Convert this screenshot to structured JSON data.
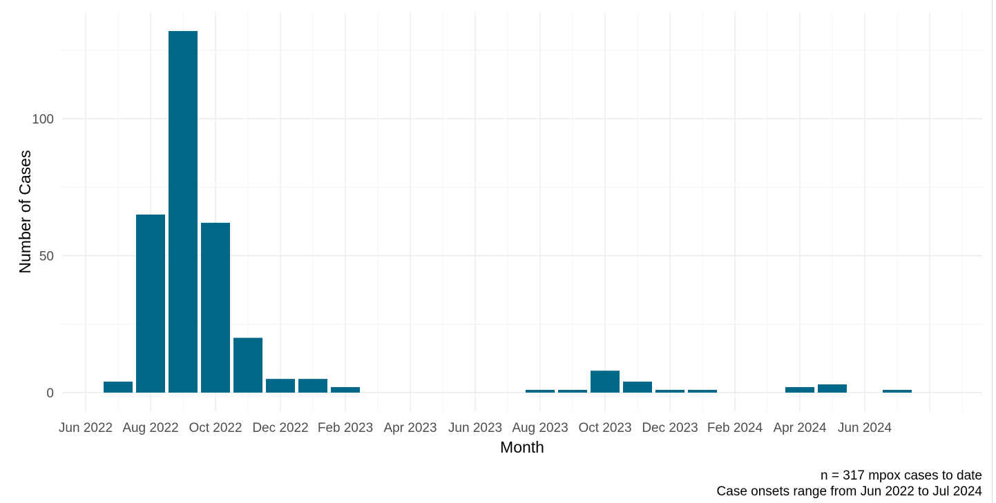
{
  "chart_data": {
    "type": "bar",
    "xlabel": "Month",
    "ylabel": "Number of Cases",
    "x_ticks": [
      "Jun 2022",
      "Aug 2022",
      "Oct 2022",
      "Dec 2022",
      "Feb 2023",
      "Apr 2023",
      "Jun 2023",
      "Aug 2023",
      "Oct 2023",
      "Dec 2023",
      "Feb 2024",
      "Apr 2024",
      "Jun 2024"
    ],
    "y_ticks": [
      0,
      50,
      100
    ],
    "ylim": [
      -6,
      132
    ],
    "grid": true,
    "color": "#006887",
    "categories": [
      "Jul 2022",
      "Aug 2022",
      "Sep 2022",
      "Oct 2022",
      "Nov 2022",
      "Dec 2022",
      "Jan 2023",
      "Feb 2023",
      "Mar 2023",
      "Apr 2023",
      "May 2023",
      "Jun 2023",
      "Jul 2023",
      "Aug 2023",
      "Sep 2023",
      "Oct 2023",
      "Nov 2023",
      "Dec 2023",
      "Jan 2024",
      "Feb 2024",
      "Mar 2024",
      "Apr 2024",
      "May 2024",
      "Jun 2024",
      "Jul 2024"
    ],
    "values": [
      4,
      65,
      132,
      62,
      20,
      5,
      5,
      2,
      0,
      0,
      0,
      0,
      0,
      1,
      1,
      8,
      4,
      1,
      1,
      0,
      0,
      2,
      3,
      0,
      1
    ],
    "caption": [
      "n = 317 mpox cases to date",
      "Case onsets range from Jun 2022 to Jul 2024"
    ]
  }
}
